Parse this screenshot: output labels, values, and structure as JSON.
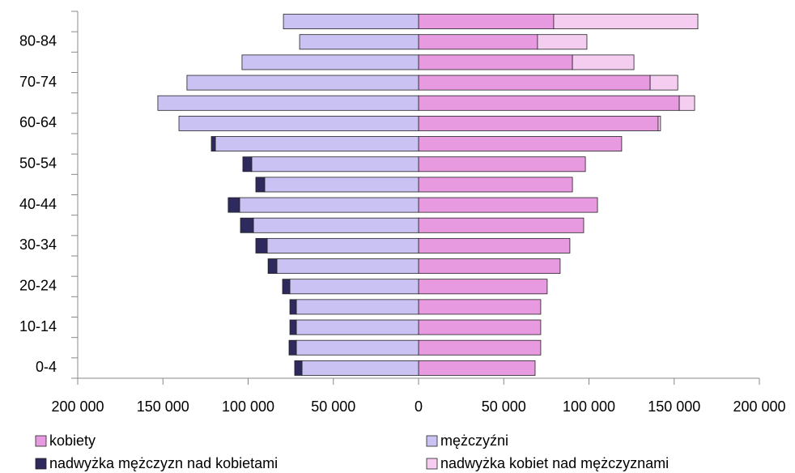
{
  "chart_data": {
    "type": "pyramid",
    "categories": [
      "0-4",
      null,
      "10-14",
      null,
      "20-24",
      null,
      "30-34",
      null,
      "40-44",
      null,
      "50-54",
      null,
      "60-64",
      null,
      "70-74",
      null,
      "80-84",
      null
    ],
    "series": [
      {
        "name": "kobiety",
        "color": "#e89ae0",
        "values": [
          68400,
          71700,
          71700,
          71700,
          75500,
          83100,
          88800,
          96900,
          105000,
          90300,
          97900,
          119200,
          140600,
          153000,
          135900,
          90300,
          69800,
          79300
        ]
      },
      {
        "name": "mężczyźni",
        "color": "#c9c2f2",
        "values": [
          -68400,
          -71700,
          -71700,
          -71700,
          -75500,
          -83100,
          -88800,
          -96900,
          -105000,
          -90300,
          -97900,
          -119200,
          -140600,
          -153000,
          -135900,
          -103600,
          -69800,
          -79300
        ]
      },
      {
        "name": "nadwyżka mężczyzn nad kobietami",
        "color": "#2e2a5e",
        "values": [
          -4300,
          -4300,
          -3800,
          -3800,
          -4300,
          -5200,
          -6700,
          -7600,
          -6700,
          -5200,
          -5200,
          -2400,
          null,
          null,
          null,
          null,
          null,
          null
        ]
      },
      {
        "name": "nadwyżka kobiet nad mężczyznami",
        "color": "#f4cdf1",
        "values": [
          null,
          null,
          null,
          null,
          null,
          null,
          null,
          null,
          null,
          null,
          null,
          null,
          1400,
          9000,
          16200,
          36100,
          29000,
          84600
        ]
      }
    ],
    "xlim": [
      -200000,
      200000
    ],
    "xticks": [
      {
        "value": -200000,
        "label": "200 000"
      },
      {
        "value": -150000,
        "label": "150 000"
      },
      {
        "value": -100000,
        "label": "100 000"
      },
      {
        "value": -50000,
        "label": "50 000"
      },
      0,
      {
        "value": 50000,
        "label": "50 000"
      },
      {
        "value": 100000,
        "label": "100 000"
      },
      {
        "value": 150000,
        "label": "150 000"
      },
      {
        "value": 200000,
        "label": "200 000"
      }
    ],
    "legend": "bottom"
  }
}
